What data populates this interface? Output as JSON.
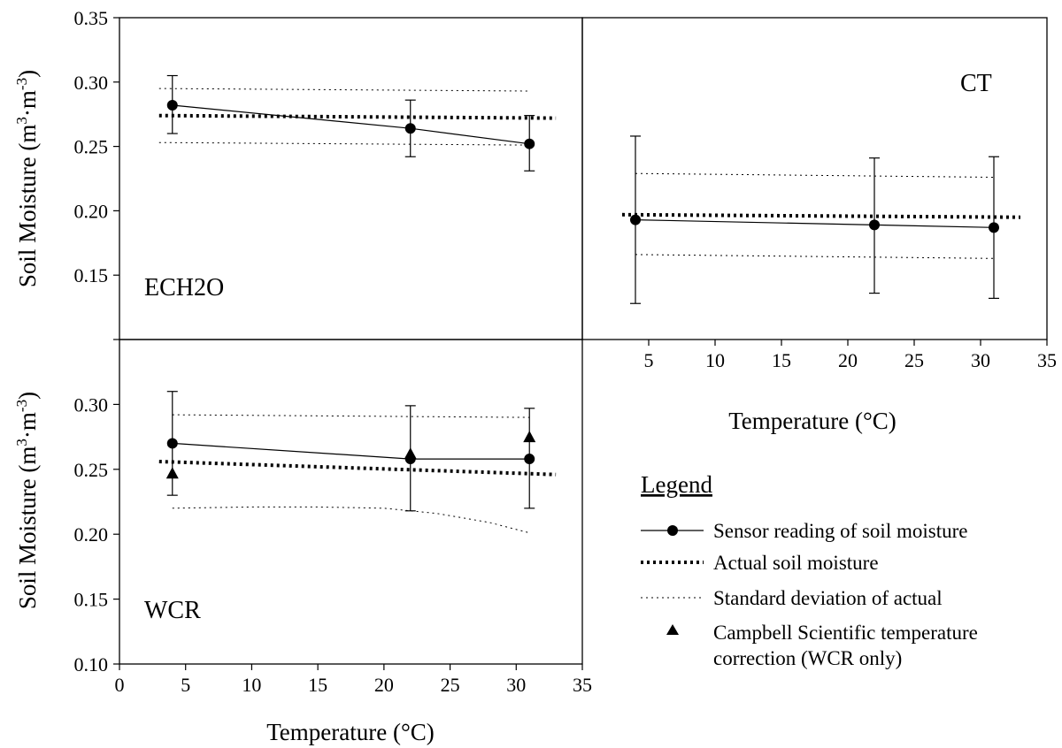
{
  "legend": {
    "title": "Legend",
    "items": [
      {
        "key": "sensor",
        "label": "Sensor reading of soil moisture"
      },
      {
        "key": "actual",
        "label": "Actual soil moisture"
      },
      {
        "key": "sd",
        "label": "Standard deviation of actual"
      },
      {
        "key": "campbell",
        "label": "Campbell Scientific temperature",
        "label2": "correction (WCR only)"
      }
    ]
  },
  "axes": {
    "ylabel_top": "Soil Moisture (m",
    "ylabel_bottom": "Soil Moisture (m",
    "xlabel_left": "Temperature (°C)",
    "xlabel_right": "Temperature (°C)"
  },
  "chart_data": [
    {
      "type": "line",
      "panel": "ECH2O",
      "xlim": [
        0,
        35
      ],
      "ylim": [
        0.1,
        0.35
      ],
      "yticks": [
        "0.15",
        "0.20",
        "0.25",
        "0.30",
        "0.35"
      ],
      "sensor": {
        "x": [
          4,
          22,
          31
        ],
        "y": [
          0.282,
          0.264,
          0.252
        ],
        "err_hi": [
          0.305,
          0.286,
          0.274
        ],
        "err_lo": [
          0.26,
          0.242,
          0.231
        ]
      },
      "actual": {
        "x": [
          3,
          33
        ],
        "y": [
          0.274,
          0.272
        ]
      },
      "sd_upper": {
        "x": [
          3,
          31
        ],
        "y": [
          0.295,
          0.293
        ]
      },
      "sd_lower": {
        "x": [
          3,
          31
        ],
        "y": [
          0.253,
          0.251
        ]
      }
    },
    {
      "type": "line",
      "panel": "CT",
      "xlim": [
        0,
        35
      ],
      "ylim": [
        0.1,
        0.35
      ],
      "xticks": [
        "5",
        "10",
        "15",
        "20",
        "25",
        "30",
        "35"
      ],
      "sensor": {
        "x": [
          4,
          22,
          31
        ],
        "y": [
          0.193,
          0.189,
          0.187
        ],
        "err_hi": [
          0.258,
          0.241,
          0.242
        ],
        "err_lo": [
          0.128,
          0.136,
          0.132
        ]
      },
      "actual": {
        "x": [
          3,
          33
        ],
        "y": [
          0.197,
          0.195
        ]
      },
      "sd_upper": {
        "x": [
          4,
          31
        ],
        "y": [
          0.229,
          0.226
        ]
      },
      "sd_lower": {
        "x": [
          4,
          31
        ],
        "y": [
          0.166,
          0.163
        ]
      }
    },
    {
      "type": "line",
      "panel": "WCR",
      "xlim": [
        0,
        35
      ],
      "ylim": [
        0.1,
        0.35
      ],
      "yticks": [
        "0.10",
        "0.15",
        "0.20",
        "0.25",
        "0.30"
      ],
      "xticks": [
        "0",
        "5",
        "10",
        "15",
        "20",
        "25",
        "30",
        "35"
      ],
      "sensor": {
        "x": [
          4,
          22,
          31
        ],
        "y": [
          0.27,
          0.258,
          0.258
        ],
        "err_hi": [
          0.31,
          0.299,
          0.297
        ],
        "err_lo": [
          0.23,
          0.218,
          0.22
        ]
      },
      "campbell": {
        "x": [
          4,
          22,
          31
        ],
        "y": [
          0.247,
          0.262,
          0.275
        ]
      },
      "actual": {
        "x": [
          3,
          33
        ],
        "y": [
          0.256,
          0.246
        ]
      },
      "sd_upper": {
        "x": [
          4,
          31
        ],
        "y": [
          0.292,
          0.29
        ]
      },
      "sd_lower_x": [
        4,
        10,
        15,
        20,
        24,
        28,
        31
      ],
      "sd_lower_y": [
        0.22,
        0.221,
        0.221,
        0.22,
        0.216,
        0.209,
        0.201
      ]
    }
  ]
}
